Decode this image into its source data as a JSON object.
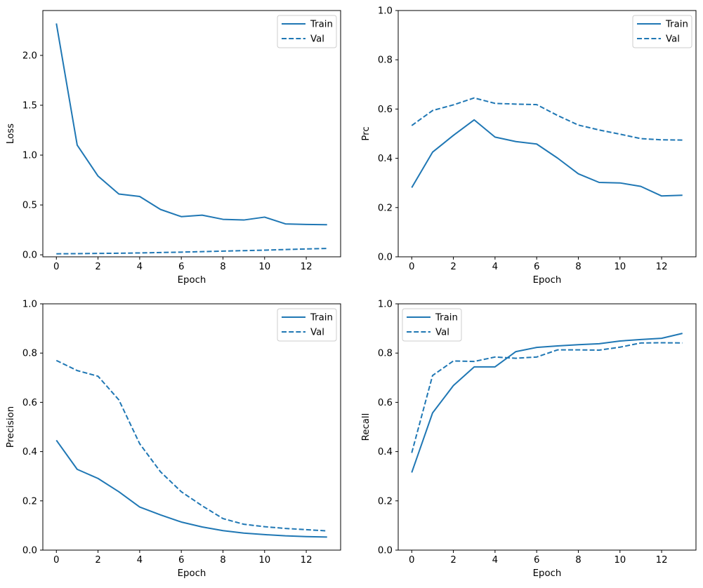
{
  "figure": {
    "background": "#ffffff",
    "accent_color": "#1f77b4",
    "legend_border_color": "#cccccc",
    "text_color": "#000000"
  },
  "chart_data": [
    {
      "id": "loss",
      "type": "line",
      "title": "",
      "xlabel": "Epoch",
      "ylabel": "Loss",
      "x": [
        0,
        1,
        2,
        3,
        4,
        5,
        6,
        7,
        8,
        9,
        10,
        11,
        12,
        13
      ],
      "series": [
        {
          "name": "Train",
          "line_style": "solid",
          "values": [
            2.32,
            1.1,
            0.79,
            0.61,
            0.585,
            0.455,
            0.383,
            0.398,
            0.356,
            0.349,
            0.378,
            0.31,
            0.305,
            0.302
          ]
        },
        {
          "name": "Val",
          "line_style": "dashed",
          "values": [
            0.01,
            0.012,
            0.014,
            0.016,
            0.019,
            0.023,
            0.027,
            0.032,
            0.037,
            0.042,
            0.047,
            0.053,
            0.059,
            0.064
          ]
        }
      ],
      "xlim": [
        -0.65,
        13.65
      ],
      "ylim": [
        -0.02,
        2.45
      ],
      "xticks": {
        "values": [
          0,
          2,
          4,
          6,
          8,
          10,
          12
        ],
        "labels": [
          "0",
          "2",
          "4",
          "6",
          "8",
          "10",
          "12"
        ]
      },
      "yticks": {
        "values": [
          0.0,
          0.5,
          1.0,
          1.5,
          2.0
        ],
        "labels": [
          "0.0",
          "0.5",
          "1.0",
          "1.5",
          "2.0"
        ]
      },
      "grid": false,
      "legend": {
        "position": "upper-right",
        "entries": [
          "Train",
          "Val"
        ]
      }
    },
    {
      "id": "prc",
      "type": "line",
      "title": "",
      "xlabel": "Epoch",
      "ylabel": "Prc",
      "x": [
        0,
        1,
        2,
        3,
        4,
        5,
        6,
        7,
        8,
        9,
        10,
        11,
        12,
        13
      ],
      "series": [
        {
          "name": "Train",
          "line_style": "solid",
          "values": [
            0.281,
            0.425,
            0.493,
            0.556,
            0.486,
            0.468,
            0.458,
            0.401,
            0.337,
            0.302,
            0.3,
            0.286,
            0.247,
            0.25
          ]
        },
        {
          "name": "Val",
          "line_style": "dashed",
          "values": [
            0.533,
            0.594,
            0.617,
            0.645,
            0.623,
            0.62,
            0.618,
            0.574,
            0.535,
            0.515,
            0.498,
            0.48,
            0.475,
            0.474
          ]
        }
      ],
      "xlim": [
        -0.65,
        13.65
      ],
      "ylim": [
        0.0,
        1.0
      ],
      "xticks": {
        "values": [
          0,
          2,
          4,
          6,
          8,
          10,
          12
        ],
        "labels": [
          "0",
          "2",
          "4",
          "6",
          "8",
          "10",
          "12"
        ]
      },
      "yticks": {
        "values": [
          0.0,
          0.2,
          0.4,
          0.6,
          0.8,
          1.0
        ],
        "labels": [
          "0.0",
          "0.2",
          "0.4",
          "0.6",
          "0.8",
          "1.0"
        ]
      },
      "grid": false,
      "legend": {
        "position": "upper-right",
        "entries": [
          "Train",
          "Val"
        ]
      }
    },
    {
      "id": "precision",
      "type": "line",
      "title": "",
      "xlabel": "Epoch",
      "ylabel": "Precision",
      "x": [
        0,
        1,
        2,
        3,
        4,
        5,
        6,
        7,
        8,
        9,
        10,
        11,
        12,
        13
      ],
      "series": [
        {
          "name": "Train",
          "line_style": "solid",
          "values": [
            0.446,
            0.328,
            0.291,
            0.237,
            0.175,
            0.143,
            0.114,
            0.094,
            0.079,
            0.069,
            0.063,
            0.058,
            0.055,
            0.053
          ]
        },
        {
          "name": "Val",
          "line_style": "dashed",
          "values": [
            0.77,
            0.729,
            0.706,
            0.61,
            0.432,
            0.318,
            0.237,
            0.18,
            0.128,
            0.105,
            0.095,
            0.088,
            0.083,
            0.078
          ]
        }
      ],
      "xlim": [
        -0.65,
        13.65
      ],
      "ylim": [
        0.0,
        1.0
      ],
      "xticks": {
        "values": [
          0,
          2,
          4,
          6,
          8,
          10,
          12
        ],
        "labels": [
          "0",
          "2",
          "4",
          "6",
          "8",
          "10",
          "12"
        ]
      },
      "yticks": {
        "values": [
          0.0,
          0.2,
          0.4,
          0.6,
          0.8,
          1.0
        ],
        "labels": [
          "0.0",
          "0.2",
          "0.4",
          "0.6",
          "0.8",
          "1.0"
        ]
      },
      "grid": false,
      "legend": {
        "position": "upper-right",
        "entries": [
          "Train",
          "Val"
        ]
      }
    },
    {
      "id": "recall",
      "type": "line",
      "title": "",
      "xlabel": "Epoch",
      "ylabel": "Recall",
      "x": [
        0,
        1,
        2,
        3,
        4,
        5,
        6,
        7,
        8,
        9,
        10,
        11,
        12,
        13
      ],
      "series": [
        {
          "name": "Train",
          "line_style": "solid",
          "values": [
            0.315,
            0.557,
            0.668,
            0.744,
            0.744,
            0.806,
            0.823,
            0.829,
            0.834,
            0.838,
            0.849,
            0.855,
            0.86,
            0.88
          ]
        },
        {
          "name": "Val",
          "line_style": "dashed",
          "values": [
            0.395,
            0.709,
            0.768,
            0.766,
            0.784,
            0.779,
            0.784,
            0.813,
            0.813,
            0.812,
            0.824,
            0.841,
            0.842,
            0.841
          ]
        }
      ],
      "xlim": [
        -0.65,
        13.65
      ],
      "ylim": [
        0.0,
        1.0
      ],
      "xticks": {
        "values": [
          0,
          2,
          4,
          6,
          8,
          10,
          12
        ],
        "labels": [
          "0",
          "2",
          "4",
          "6",
          "8",
          "10",
          "12"
        ]
      },
      "yticks": {
        "values": [
          0.0,
          0.2,
          0.4,
          0.6,
          0.8,
          1.0
        ],
        "labels": [
          "0.0",
          "0.2",
          "0.4",
          "0.6",
          "0.8",
          "1.0"
        ]
      },
      "grid": false,
      "legend": {
        "position": "upper-left",
        "entries": [
          "Train",
          "Val"
        ]
      }
    }
  ]
}
